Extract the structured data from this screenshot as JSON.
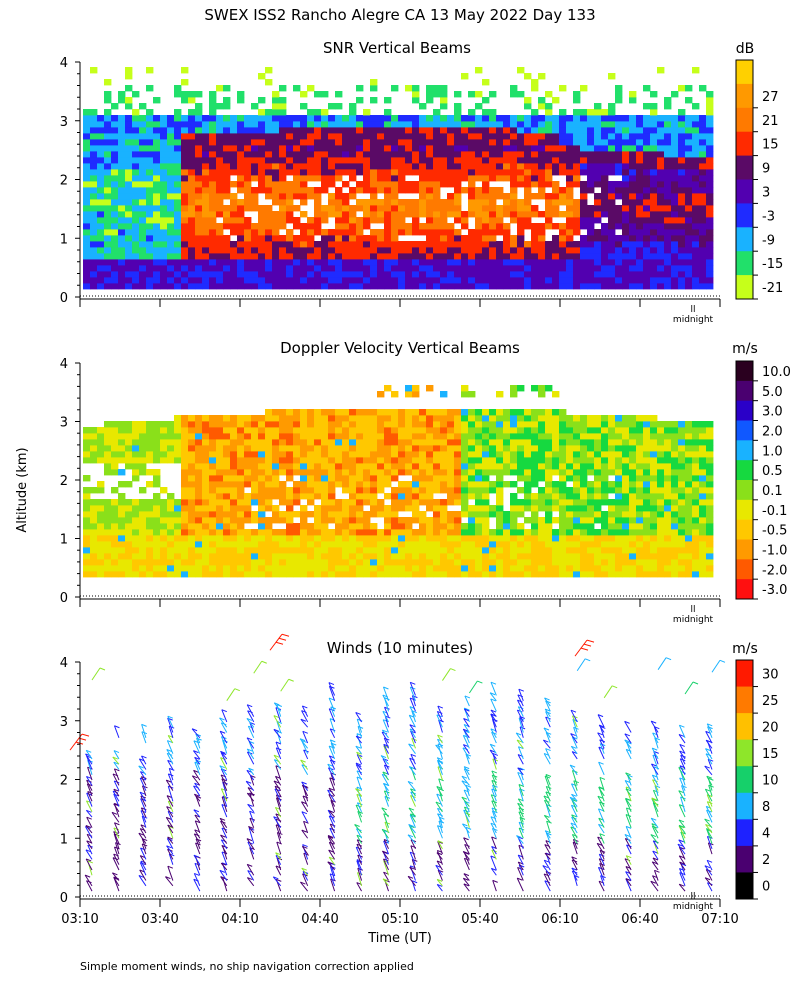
{
  "figure": {
    "title": "SWEX ISS2 Rancho Alegre CA  13 May 2022 Day 133",
    "ylabel": "Altitude (km)",
    "xlabel": "Time (UT)",
    "footnote": "Simple moment winds, no ship navigation correction applied",
    "midnight_label": "midnight",
    "midnight_marker": "ll"
  },
  "chart_data": [
    {
      "type": "heatmap",
      "title": "SNR Vertical Beams",
      "ylim": [
        0,
        4
      ],
      "yticks": [
        "0",
        "1",
        "2",
        "3",
        "4"
      ],
      "x_tick_count": 8,
      "colorbar": {
        "unit": "dB",
        "labels": [
          "27",
          "21",
          "15",
          "9",
          "3",
          "-3",
          "-9",
          "-15",
          "-21"
        ],
        "colors": [
          "#ff9900",
          "#ff7a00",
          "#ff2a00",
          "#5a0a66",
          "#5200b0",
          "#1f2bff",
          "#19b2ff",
          "#21e06a",
          "#c6ff1a"
        ],
        "top_color": "#ffd000"
      },
      "shown_features": {
        "strong_layer_km": [
          1.0,
          2.1
        ],
        "weak_upper_layer_km": [
          2.2,
          3.0
        ],
        "sparse_returns_km": [
          3.0,
          3.6
        ]
      }
    },
    {
      "type": "heatmap",
      "title": "Doppler Velocity Vertical Beams",
      "ylim": [
        0,
        4
      ],
      "yticks": [
        "0",
        "1",
        "2",
        "3",
        "4"
      ],
      "x_tick_count": 8,
      "colorbar": {
        "unit": "m/s",
        "labels": [
          "10.0",
          "5.0",
          "3.0",
          "2.0",
          "1.0",
          "0.5",
          "0.1",
          "-0.1",
          "-0.5",
          "-1.0",
          "-2.0",
          "-3.0"
        ],
        "colors": [
          "#2a001f",
          "#4a0070",
          "#2a00c8",
          "#1058ff",
          "#19b2ff",
          "#16d940",
          "#8ae01a",
          "#e8e800",
          "#ffc800",
          "#ff9a00",
          "#ff5a00",
          "#ff1010"
        ]
      }
    },
    {
      "type": "scatter",
      "title": "Winds (10 minutes)",
      "ylim": [
        0,
        4
      ],
      "yticks": [
        "0",
        "1",
        "2",
        "3",
        "4"
      ],
      "x": [
        "03:10",
        "03:40",
        "04:10",
        "04:40",
        "05:10",
        "05:40",
        "06:10",
        "06:40",
        "07:10"
      ],
      "colorbar": {
        "unit": "m/s",
        "labels": [
          "30",
          "25",
          "20",
          "15",
          "10",
          "8",
          "4",
          "2",
          "0"
        ],
        "colors": [
          "#ff1a00",
          "#ff7a00",
          "#ffc000",
          "#8ee62a",
          "#16d06a",
          "#19b2ff",
          "#1e22ff",
          "#4a0070",
          "#000000"
        ]
      }
    }
  ]
}
